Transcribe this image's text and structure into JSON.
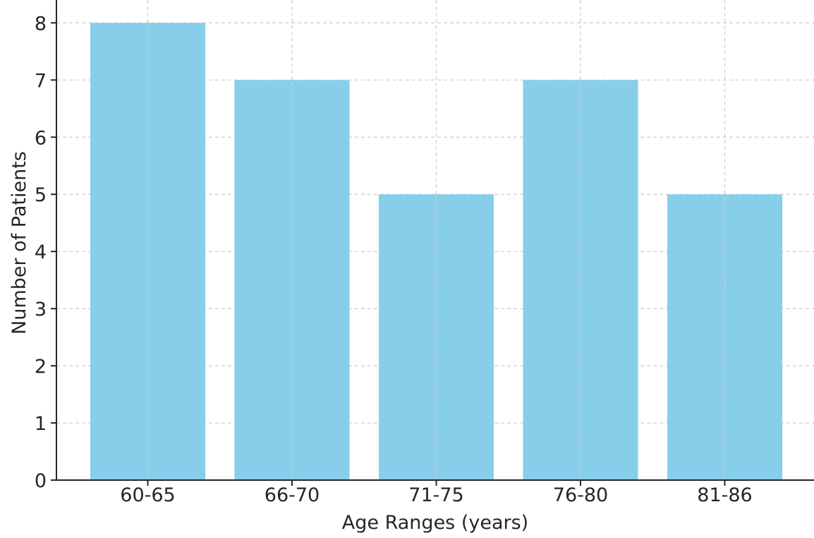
{
  "chart_data": {
    "type": "bar",
    "title": "",
    "xlabel": "Age Ranges (years)",
    "ylabel": "Number of Patients",
    "categories": [
      "60-65",
      "66-70",
      "71-75",
      "76-80",
      "81-86"
    ],
    "values": [
      8,
      7,
      5,
      7,
      5
    ],
    "ylim": [
      0,
      8.4
    ],
    "yticks": [
      0,
      1,
      2,
      3,
      4,
      5,
      6,
      7,
      8
    ],
    "grid": true,
    "legend": "none",
    "bar_color": "#87CEEB",
    "grid_color": "#cccccc",
    "axis_color": "#262626"
  }
}
